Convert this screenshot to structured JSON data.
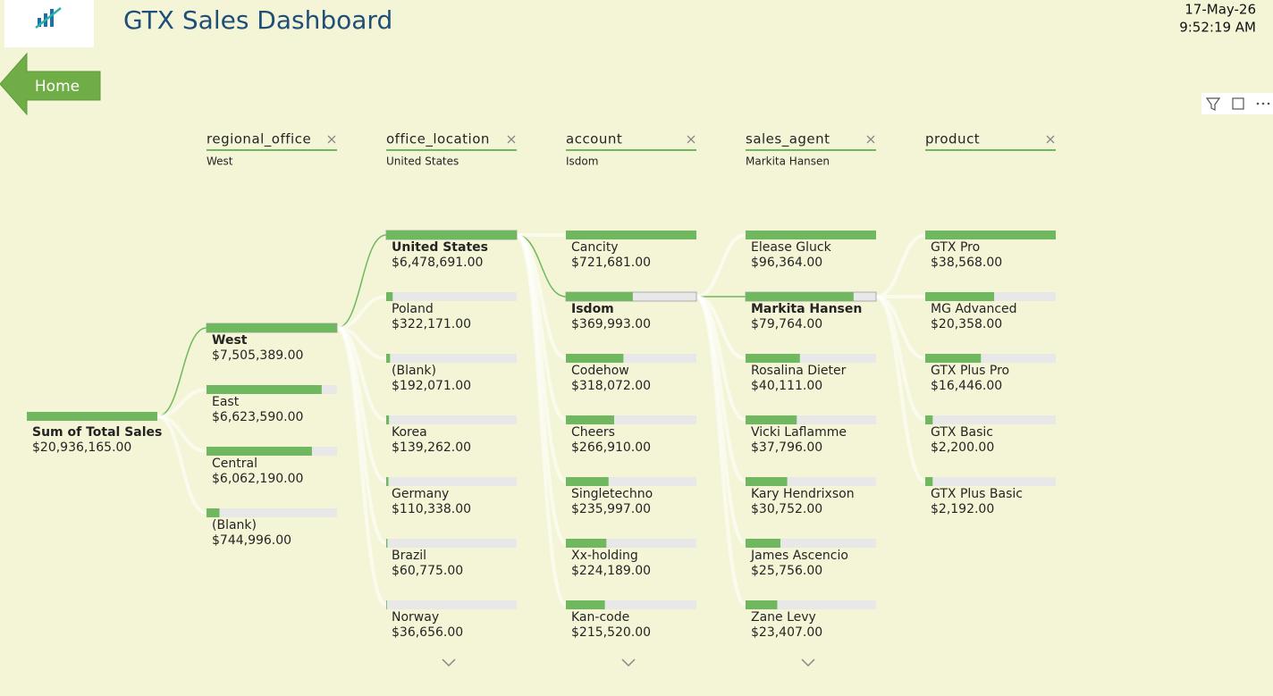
{
  "header": {
    "title": "GTX Sales Dashboard",
    "date": "17-May-26",
    "time": "9:52:19 AM"
  },
  "home_button": "Home",
  "tree": {
    "root": {
      "name": "Sum of Total Sales",
      "value": 20936165,
      "value_label": "$20,936,165.00"
    },
    "levels": [
      {
        "field": "regional_office",
        "filter": "West",
        "nodes": [
          {
            "name": "West",
            "value": 7505389,
            "value_label": "$7,505,389.00"
          },
          {
            "name": "East",
            "value": 6623590,
            "value_label": "$6,623,590.00"
          },
          {
            "name": "Central",
            "value": 6062190,
            "value_label": "$6,062,190.00"
          },
          {
            "name": "(Blank)",
            "value": 744996,
            "value_label": "$744,996.00"
          }
        ]
      },
      {
        "field": "office_location",
        "filter": "United States",
        "nodes": [
          {
            "name": "United States",
            "value": 6478691,
            "value_label": "$6,478,691.00"
          },
          {
            "name": "Poland",
            "value": 322171,
            "value_label": "$322,171.00"
          },
          {
            "name": "(Blank)",
            "value": 192071,
            "value_label": "$192,071.00"
          },
          {
            "name": "Korea",
            "value": 139262,
            "value_label": "$139,262.00"
          },
          {
            "name": "Germany",
            "value": 110338,
            "value_label": "$110,338.00"
          },
          {
            "name": "Brazil",
            "value": 60775,
            "value_label": "$60,775.00"
          },
          {
            "name": "Norway",
            "value": 36656,
            "value_label": "$36,656.00"
          }
        ]
      },
      {
        "field": "account",
        "filter": "Isdom",
        "nodes": [
          {
            "name": "Cancity",
            "value": 721681,
            "value_label": "$721,681.00"
          },
          {
            "name": "Isdom",
            "value": 369993,
            "value_label": "$369,993.00"
          },
          {
            "name": "Codehow",
            "value": 318072,
            "value_label": "$318,072.00"
          },
          {
            "name": "Cheers",
            "value": 266910,
            "value_label": "$266,910.00"
          },
          {
            "name": "Singletechno",
            "value": 235997,
            "value_label": "$235,997.00"
          },
          {
            "name": "Xx-holding",
            "value": 224189,
            "value_label": "$224,189.00"
          },
          {
            "name": "Kan-code",
            "value": 215520,
            "value_label": "$215,520.00"
          }
        ]
      },
      {
        "field": "sales_agent",
        "filter": "Markita Hansen",
        "nodes": [
          {
            "name": "Elease Gluck",
            "value": 96364,
            "value_label": "$96,364.00"
          },
          {
            "name": "Markita Hansen",
            "value": 79764,
            "value_label": "$79,764.00"
          },
          {
            "name": "Rosalina Dieter",
            "value": 40111,
            "value_label": "$40,111.00"
          },
          {
            "name": "Vicki Laflamme",
            "value": 37796,
            "value_label": "$37,796.00"
          },
          {
            "name": "Kary Hendrixson",
            "value": 30752,
            "value_label": "$30,752.00"
          },
          {
            "name": "James Ascencio",
            "value": 25756,
            "value_label": "$25,756.00"
          },
          {
            "name": "Zane Levy",
            "value": 23407,
            "value_label": "$23,407.00"
          }
        ]
      },
      {
        "field": "product",
        "nodes": [
          {
            "name": "GTX Pro",
            "value": 38568,
            "value_label": "$38,568.00"
          },
          {
            "name": "MG Advanced",
            "value": 20358,
            "value_label": "$20,358.00"
          },
          {
            "name": "GTX Plus Pro",
            "value": 16446,
            "value_label": "$16,446.00"
          },
          {
            "name": "GTX Basic",
            "value": 2200,
            "value_label": "$2,200.00"
          },
          {
            "name": "GTX Plus Basic",
            "value": 2192,
            "value_label": "$2,192.00"
          }
        ]
      }
    ]
  }
}
